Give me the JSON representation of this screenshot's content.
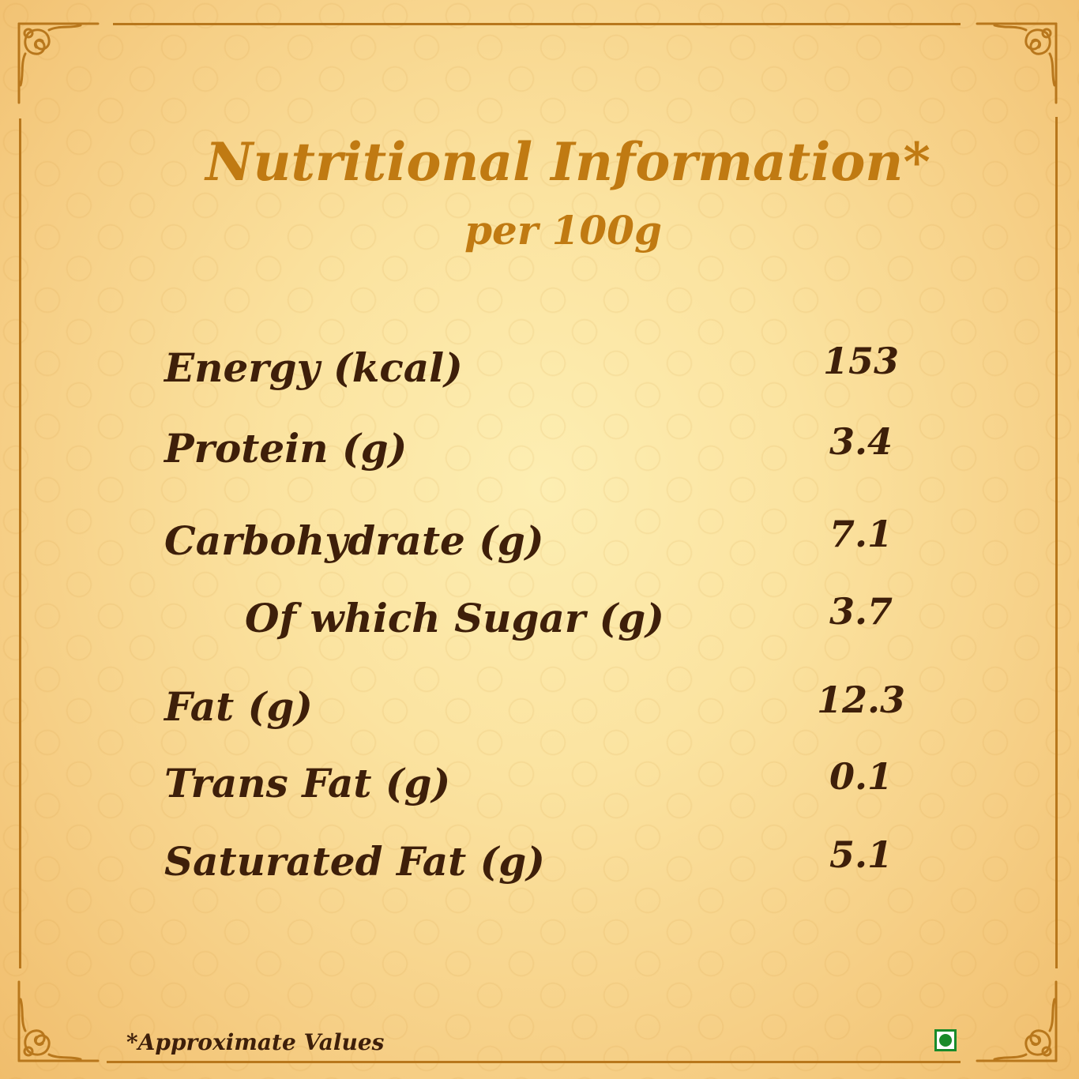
{
  "title": "Nutritional Information*",
  "subtitle": "per 100g",
  "rows": [
    {
      "label": "Energy (kcal)",
      "value": "153"
    },
    {
      "label": "Protein (g)",
      "value": "3.4"
    },
    {
      "label": "Carbohydrate (g)",
      "value": "7.1"
    },
    {
      "label": "Of which Sugar (g)",
      "value": "3.7"
    },
    {
      "label": "Fat (g)",
      "value": "12.3"
    },
    {
      "label": "Trans Fat (g)",
      "value": "0.1"
    },
    {
      "label": "Saturated Fat (g)",
      "value": "5.1"
    }
  ],
  "footnote": "*Approximate Values",
  "colors": {
    "heading": "#c07a12",
    "text": "#3e1f0a",
    "border": "#b8771c",
    "veg_mark": "#1a8a2a"
  },
  "icons": [
    "corner-ornament-icon",
    "veg-mark-icon"
  ]
}
